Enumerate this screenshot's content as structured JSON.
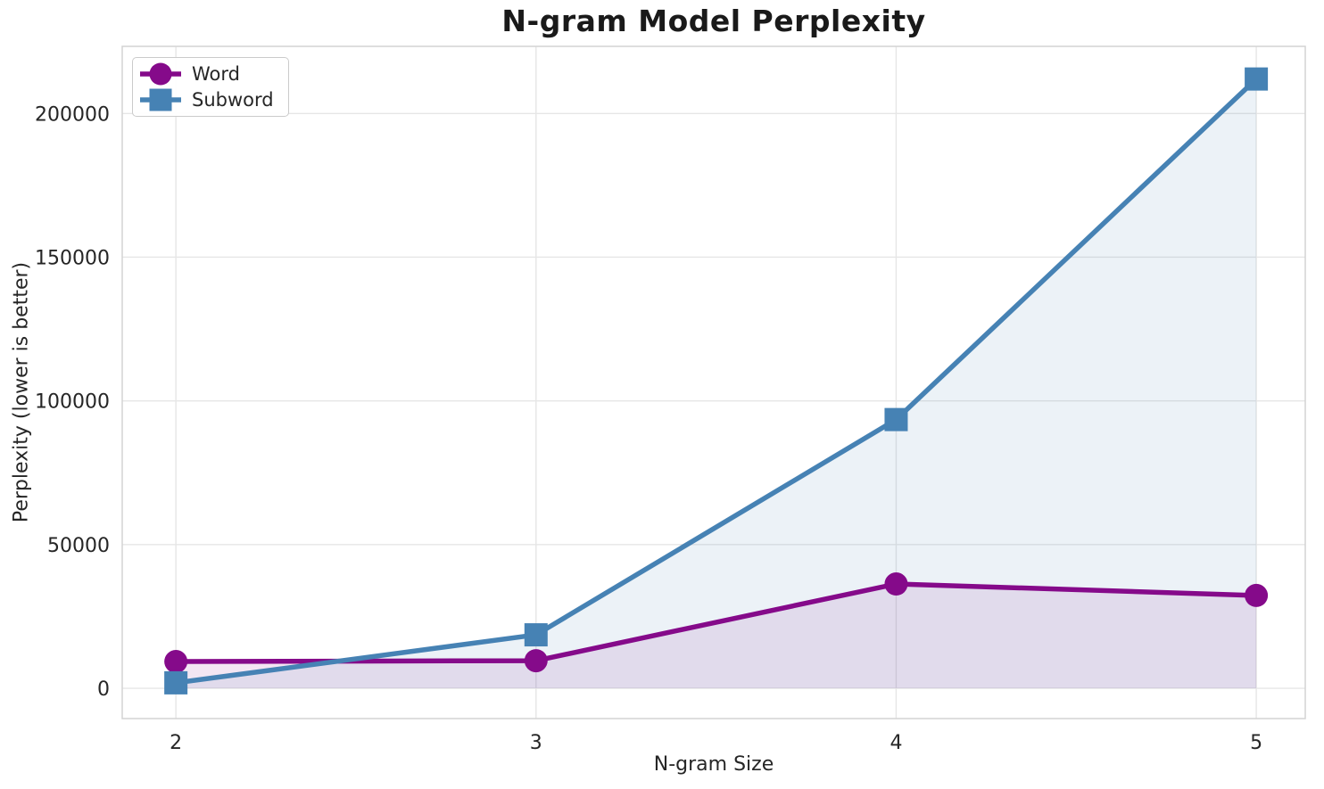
{
  "chart_data": {
    "type": "line",
    "title": "N-gram Model Perplexity",
    "xlabel": "N-gram Size",
    "ylabel": "Perplexity (lower is better)",
    "x": [
      2,
      3,
      4,
      5
    ],
    "series": [
      {
        "name": "Word",
        "marker": "circle",
        "color": "#850a8a",
        "fill_opacity": 0.1,
        "values": [
          9300,
          9600,
          36300,
          32300
        ]
      },
      {
        "name": "Subword",
        "marker": "square",
        "color": "#4682b4",
        "fill_opacity": 0.1,
        "values": [
          1900,
          18600,
          93500,
          212000
        ]
      }
    ],
    "axes": {
      "xticks": [
        2,
        3,
        4,
        5
      ],
      "yticks": [
        0,
        50000,
        100000,
        150000,
        200000
      ],
      "xlim": [
        1.851,
        5.136
      ],
      "ylim": [
        -10540,
        223360
      ],
      "grid": true,
      "area_baseline": 0
    },
    "legend": {
      "position": "upper-left"
    },
    "colors": {
      "grid": "#e6e6e6",
      "spine": "#d3d3d3",
      "text": "#262626",
      "title": "#1a1a1a"
    }
  }
}
